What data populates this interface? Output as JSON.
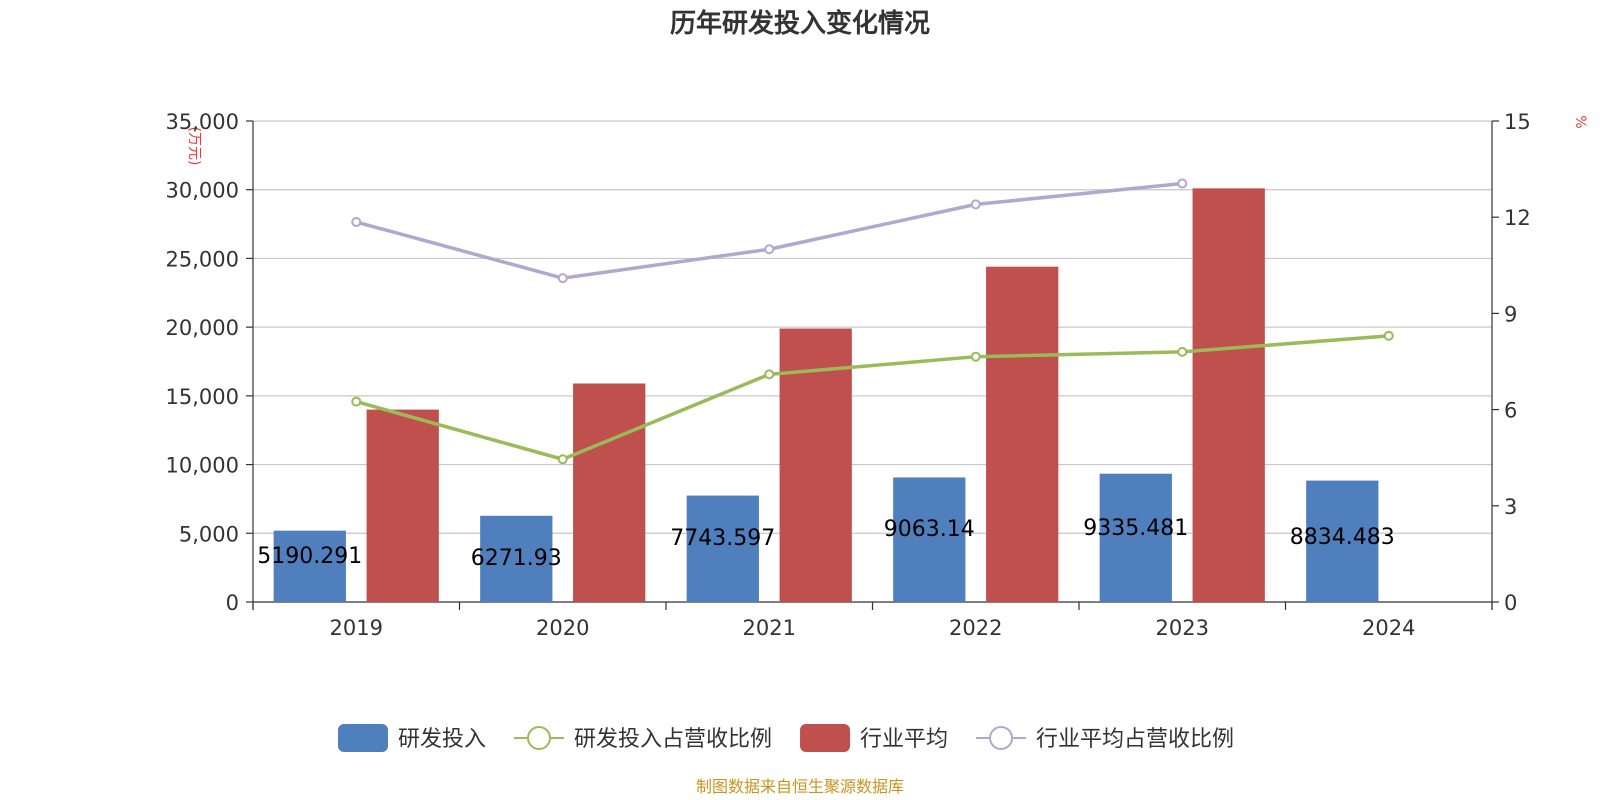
{
  "chart_data": {
    "type": "bar",
    "title": "历年研发投入变化情况",
    "categories": [
      "2019",
      "2020",
      "2021",
      "2022",
      "2023",
      "2024"
    ],
    "left_axis": {
      "unit": "(万元)",
      "ylim": [
        0,
        35000
      ],
      "ticks": [
        "0",
        "5,000",
        "10,000",
        "15,000",
        "20,000",
        "25,000",
        "30,000",
        "35,000"
      ],
      "tick_values": [
        0,
        5000,
        10000,
        15000,
        20000,
        25000,
        30000,
        35000
      ]
    },
    "right_axis": {
      "unit": "%",
      "ylim": [
        0,
        15
      ],
      "ticks": [
        "0",
        "3",
        "6",
        "9",
        "12",
        "15"
      ],
      "tick_values": [
        0,
        3,
        6,
        9,
        12,
        15
      ]
    },
    "series": [
      {
        "name": "研发投入",
        "kind": "bar",
        "axis": "left",
        "color": "#4f7fbd",
        "values": [
          5190.291,
          6271.93,
          7743.597,
          9063.14,
          9335.481,
          8834.483
        ],
        "labels": [
          "5190.291",
          "6271.93",
          "7743.597",
          "9063.14",
          "9335.481",
          "8834.483"
        ]
      },
      {
        "name": "行业平均",
        "kind": "bar",
        "axis": "left",
        "color": "#c0504d",
        "values": [
          14000,
          15900,
          19900,
          24400,
          30100,
          null
        ]
      },
      {
        "name": "研发投入占营收比例",
        "kind": "line",
        "axis": "right",
        "color": "#9bbb59",
        "values": [
          6.25,
          4.45,
          7.1,
          7.65,
          7.8,
          8.3
        ]
      },
      {
        "name": "行业平均占营收比例",
        "kind": "line",
        "axis": "right",
        "color": "#b3a6cf",
        "values": [
          11.85,
          10.1,
          11.0,
          12.4,
          13.05,
          null
        ]
      }
    ],
    "grid": true,
    "legend_position": "bottom"
  },
  "source": "制图数据来自恒生聚源数据库"
}
